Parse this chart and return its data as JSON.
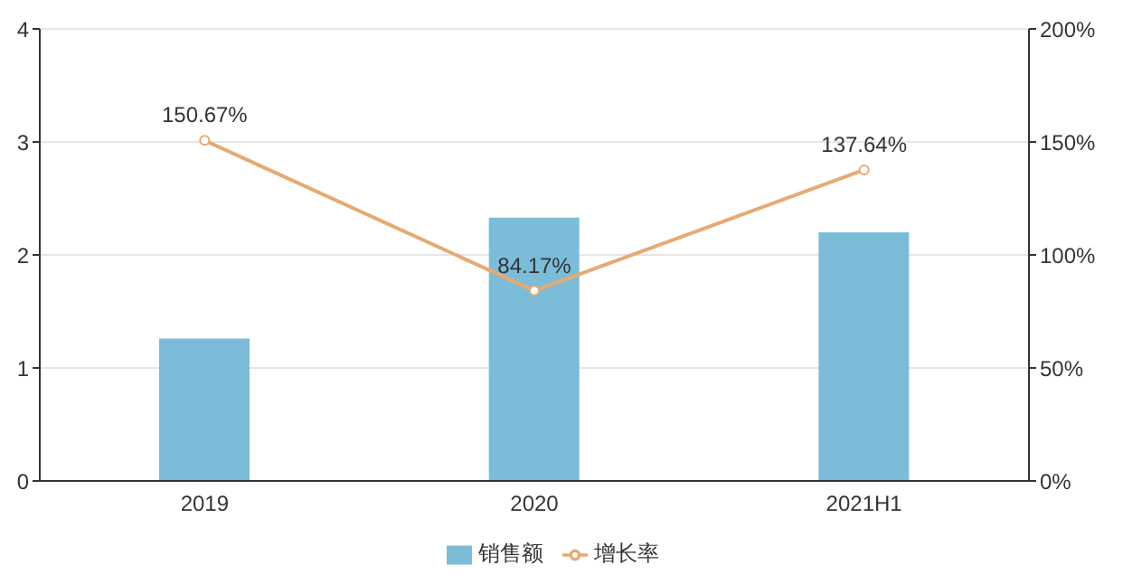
{
  "chart_data": {
    "type": "bar",
    "categories": [
      "2019",
      "2020",
      "2021H1"
    ],
    "series": [
      {
        "name": "销售额",
        "color": "#7bbcd9",
        "values": [
          1.26,
          2.33,
          2.2
        ]
      },
      {
        "name": "增长率",
        "type": "line",
        "axis": "y2",
        "color": "#e6aa72",
        "values": [
          150.67,
          84.17,
          137.64
        ],
        "value_labels": [
          "150.67%",
          "84.17%",
          "137.64%"
        ]
      }
    ],
    "ylim": [
      0,
      4
    ],
    "yticks": [
      0,
      1,
      2,
      3,
      4
    ],
    "y2lim": [
      0,
      200
    ],
    "y2ticks": [
      {
        "value": 0,
        "label": "0%"
      },
      {
        "value": 50,
        "label": "50%"
      },
      {
        "value": 100,
        "label": "100%"
      },
      {
        "value": 150,
        "label": "150%"
      },
      {
        "value": 200,
        "label": "200%"
      }
    ],
    "grid": "y",
    "legend": "bottom",
    "marker": "circle",
    "line_style": "solid"
  }
}
